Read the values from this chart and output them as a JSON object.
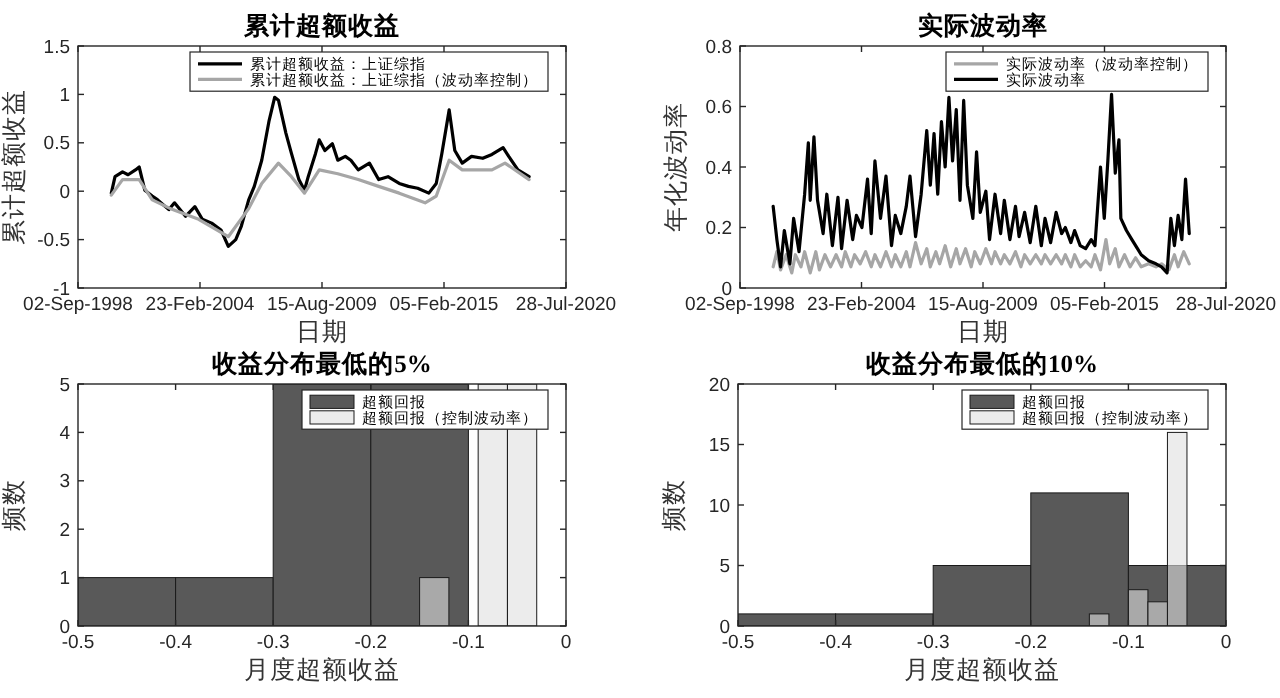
{
  "chart_data": [
    {
      "type": "line",
      "title": "累计超额收益",
      "xlabel": "日期",
      "ylabel": "累计超额收益",
      "legend": "top right",
      "xlim": [
        "1998-09-02",
        "2020-07-28"
      ],
      "xticks": [
        {
          "value": "1998-09-02",
          "label": "02-Sep-1998"
        },
        {
          "value": "2004-02-23",
          "label": "23-Feb-2004"
        },
        {
          "value": "2009-08-15",
          "label": "15-Aug-2009"
        },
        {
          "value": "2015-02-05",
          "label": "05-Feb-2015"
        },
        {
          "value": "2020-07-28",
          "label": "28-Jul-2020"
        }
      ],
      "ylim": [
        -1,
        1.5
      ],
      "yticks": [
        -1,
        -0.5,
        0,
        0.5,
        1,
        1.5
      ],
      "series": [
        {
          "name": "累计超额收益：上证综指",
          "color": "#000000",
          "x": [
            "2000-03",
            "2000-05",
            "2000-09",
            "2000-12",
            "2001-04",
            "2001-06",
            "2001-09",
            "2002-01",
            "2002-04",
            "2002-10",
            "2003-01",
            "2003-07",
            "2003-12",
            "2004-04",
            "2004-09",
            "2005-02",
            "2005-06",
            "2005-10",
            "2006-01",
            "2006-05",
            "2006-08",
            "2006-12",
            "2007-04",
            "2007-07",
            "2007-09",
            "2008-01",
            "2008-04",
            "2008-08",
            "2008-11",
            "2009-01",
            "2009-05",
            "2009-07",
            "2009-10",
            "2010-02",
            "2010-05",
            "2010-09",
            "2010-12",
            "2011-04",
            "2011-10",
            "2012-03",
            "2012-08",
            "2013-02",
            "2013-07",
            "2013-12",
            "2014-06",
            "2014-10",
            "2015-01",
            "2015-05",
            "2015-08",
            "2015-12",
            "2016-05",
            "2016-11",
            "2017-04",
            "2017-10",
            "2018-01",
            "2018-06",
            "2018-12"
          ],
          "values": [
            -0.02,
            0.15,
            0.2,
            0.17,
            0.22,
            0.25,
            0.01,
            -0.05,
            -0.09,
            -0.19,
            -0.12,
            -0.26,
            -0.16,
            -0.29,
            -0.33,
            -0.4,
            -0.57,
            -0.5,
            -0.36,
            -0.09,
            0.05,
            0.32,
            0.73,
            0.97,
            0.94,
            0.6,
            0.39,
            0.12,
            0.01,
            0.15,
            0.39,
            0.53,
            0.42,
            0.49,
            0.32,
            0.36,
            0.32,
            0.22,
            0.29,
            0.12,
            0.15,
            0.08,
            0.05,
            0.03,
            -0.02,
            0.08,
            0.39,
            0.84,
            0.42,
            0.29,
            0.36,
            0.34,
            0.38,
            0.45,
            0.36,
            0.22,
            0.15
          ]
        },
        {
          "name": "累计超额收益：上证综指（波动率控制）",
          "color": "#a6a6a6",
          "x": [
            "2000-03",
            "2000-09",
            "2001-06",
            "2002-01",
            "2002-12",
            "2004-02",
            "2005-06",
            "2006-05",
            "2006-12",
            "2007-09",
            "2008-04",
            "2008-11",
            "2009-07",
            "2010-05",
            "2011-04",
            "2012-03",
            "2013-02",
            "2014-04",
            "2014-10",
            "2015-05",
            "2015-12",
            "2017-04",
            "2017-11",
            "2018-12"
          ],
          "values": [
            -0.04,
            0.12,
            0.12,
            -0.09,
            -0.19,
            -0.29,
            -0.47,
            -0.18,
            0.08,
            0.29,
            0.15,
            -0.02,
            0.22,
            0.18,
            0.12,
            0.05,
            -0.02,
            -0.12,
            -0.05,
            0.32,
            0.22,
            0.22,
            0.29,
            0.12
          ]
        }
      ]
    },
    {
      "type": "line",
      "title": "实际波动率",
      "xlabel": "日期",
      "ylabel": "年化波动率",
      "legend": "top right",
      "xlim": [
        "1998-09-02",
        "2020-07-28"
      ],
      "xticks": [
        {
          "value": "1998-09-02",
          "label": "02-Sep-1998"
        },
        {
          "value": "2004-02-23",
          "label": "23-Feb-2004"
        },
        {
          "value": "2009-08-15",
          "label": "15-Aug-2009"
        },
        {
          "value": "2015-02-05",
          "label": "05-Feb-2015"
        },
        {
          "value": "2020-07-28",
          "label": "28-Jul-2020"
        }
      ],
      "ylim": [
        0,
        0.8
      ],
      "yticks": [
        0,
        0.2,
        0.4,
        0.6,
        0.8
      ],
      "series": [
        {
          "name": "实际波动率（波动率控制）",
          "color": "#a6a6a6",
          "x": [
            "2000-03",
            "2000-05",
            "2000-07",
            "2000-10",
            "2001-01",
            "2001-03",
            "2001-06",
            "2001-08",
            "2001-11",
            "2002-02",
            "2002-04",
            "2002-07",
            "2002-10",
            "2003-01",
            "2003-04",
            "2003-06",
            "2003-09",
            "2003-11",
            "2004-02",
            "2004-05",
            "2004-08",
            "2004-10",
            "2005-01",
            "2005-04",
            "2005-07",
            "2005-09",
            "2005-12",
            "2006-03",
            "2006-05",
            "2006-08",
            "2006-11",
            "2007-02",
            "2007-04",
            "2007-07",
            "2007-09",
            "2007-12",
            "2008-03",
            "2008-06",
            "2008-08",
            "2008-11",
            "2009-02",
            "2009-04",
            "2009-07",
            "2009-10",
            "2010-01",
            "2010-03",
            "2010-06",
            "2010-08",
            "2010-11",
            "2011-02",
            "2011-05",
            "2011-07",
            "2011-10",
            "2012-01",
            "2012-04",
            "2012-06",
            "2012-09",
            "2012-12",
            "2013-03",
            "2013-05",
            "2013-08",
            "2013-10",
            "2014-01",
            "2014-04",
            "2014-07",
            "2014-09",
            "2014-12",
            "2015-03",
            "2015-05",
            "2015-08",
            "2015-10",
            "2016-01",
            "2016-04",
            "2016-07",
            "2016-10",
            "2017-02",
            "2017-06",
            "2017-09",
            "2018-01",
            "2018-04",
            "2018-06",
            "2018-09",
            "2018-12"
          ],
          "values": [
            0.07,
            0.12,
            0.06,
            0.11,
            0.05,
            0.11,
            0.07,
            0.12,
            0.05,
            0.12,
            0.06,
            0.11,
            0.07,
            0.11,
            0.07,
            0.12,
            0.07,
            0.11,
            0.08,
            0.12,
            0.07,
            0.11,
            0.07,
            0.12,
            0.07,
            0.11,
            0.07,
            0.12,
            0.07,
            0.15,
            0.08,
            0.13,
            0.07,
            0.12,
            0.08,
            0.14,
            0.07,
            0.13,
            0.08,
            0.13,
            0.07,
            0.12,
            0.08,
            0.13,
            0.08,
            0.12,
            0.08,
            0.11,
            0.08,
            0.12,
            0.07,
            0.11,
            0.08,
            0.11,
            0.08,
            0.11,
            0.08,
            0.11,
            0.08,
            0.11,
            0.07,
            0.11,
            0.07,
            0.09,
            0.07,
            0.11,
            0.06,
            0.16,
            0.08,
            0.13,
            0.07,
            0.11,
            0.07,
            0.1,
            0.07,
            0.08,
            0.07,
            0.08,
            0.06,
            0.11,
            0.07,
            0.12,
            0.08
          ]
        },
        {
          "name": "实际波动率",
          "color": "#000000",
          "x": [
            "2000-03",
            "2000-05",
            "2000-07",
            "2000-09",
            "2000-12",
            "2001-02",
            "2001-05",
            "2001-08",
            "2001-10",
            "2001-11",
            "2002-01",
            "2002-03",
            "2002-06",
            "2002-08",
            "2002-11",
            "2003-02",
            "2003-04",
            "2003-07",
            "2003-10",
            "2003-12",
            "2004-03",
            "2004-06",
            "2004-08",
            "2004-10",
            "2005-01",
            "2005-04",
            "2005-07",
            "2005-09",
            "2005-12",
            "2006-03",
            "2006-05",
            "2006-08",
            "2006-11",
            "2007-02",
            "2007-04",
            "2007-06",
            "2007-08",
            "2007-10",
            "2007-12",
            "2008-02",
            "2008-04",
            "2008-06",
            "2008-08",
            "2008-10",
            "2008-12",
            "2009-03",
            "2009-05",
            "2009-07",
            "2009-10",
            "2009-12",
            "2010-03",
            "2010-06",
            "2010-08",
            "2010-11",
            "2011-02",
            "2011-04",
            "2011-07",
            "2011-10",
            "2012-01",
            "2012-04",
            "2012-06",
            "2012-09",
            "2012-12",
            "2013-03",
            "2013-05",
            "2013-08",
            "2013-10",
            "2014-01",
            "2014-04",
            "2014-07",
            "2014-09",
            "2014-12",
            "2015-02",
            "2015-04",
            "2015-06",
            "2015-08",
            "2015-10",
            "2015-11",
            "2016-02",
            "2016-05",
            "2016-08",
            "2016-10",
            "2017-02",
            "2017-06",
            "2017-09",
            "2017-12",
            "2018-02",
            "2018-04",
            "2018-06",
            "2018-08",
            "2018-10",
            "2018-12"
          ],
          "values": [
            0.27,
            0.16,
            0.07,
            0.19,
            0.08,
            0.23,
            0.12,
            0.31,
            0.48,
            0.29,
            0.5,
            0.29,
            0.18,
            0.31,
            0.14,
            0.3,
            0.13,
            0.29,
            0.16,
            0.24,
            0.2,
            0.36,
            0.18,
            0.42,
            0.23,
            0.37,
            0.14,
            0.24,
            0.18,
            0.27,
            0.37,
            0.17,
            0.31,
            0.52,
            0.34,
            0.51,
            0.31,
            0.55,
            0.4,
            0.63,
            0.42,
            0.59,
            0.29,
            0.62,
            0.34,
            0.23,
            0.45,
            0.25,
            0.32,
            0.16,
            0.31,
            0.18,
            0.29,
            0.16,
            0.27,
            0.17,
            0.25,
            0.15,
            0.27,
            0.14,
            0.23,
            0.15,
            0.25,
            0.18,
            0.2,
            0.15,
            0.19,
            0.14,
            0.13,
            0.16,
            0.14,
            0.4,
            0.23,
            0.42,
            0.64,
            0.38,
            0.49,
            0.23,
            0.19,
            0.16,
            0.13,
            0.11,
            0.09,
            0.08,
            0.07,
            0.05,
            0.23,
            0.14,
            0.24,
            0.16,
            0.36,
            0.18
          ]
        }
      ]
    },
    {
      "type": "histogram",
      "title": "收益分布最低的5%",
      "xlabel": "月度超额收益",
      "ylabel": "频数",
      "legend": "top right",
      "xlim": [
        -0.5,
        0
      ],
      "xticks": [
        -0.5,
        -0.4,
        -0.3,
        -0.2,
        -0.1,
        0
      ],
      "ylim": [
        0,
        5
      ],
      "yticks": [
        0,
        1,
        2,
        3,
        4,
        5
      ],
      "bins": [
        -0.5,
        -0.4,
        -0.3,
        -0.2,
        -0.1
      ],
      "series": [
        {
          "name": "超额回报",
          "color": "#595959",
          "values": [
            1,
            1,
            5,
            5
          ]
        },
        {
          "name": "超额回报（控制波动率）",
          "color": "#e0e0e0",
          "bins": [
            -0.15,
            -0.12,
            -0.09,
            -0.06,
            -0.03
          ],
          "values": [
            1,
            0,
            5,
            5
          ]
        }
      ]
    },
    {
      "type": "histogram",
      "title": "收益分布最低的10%",
      "xlabel": "月度超额收益",
      "ylabel": "频数",
      "legend": "top right",
      "xlim": [
        -0.5,
        0
      ],
      "xticks": [
        -0.5,
        -0.4,
        -0.3,
        -0.2,
        -0.1,
        0
      ],
      "ylim": [
        0,
        20
      ],
      "yticks": [
        0,
        5,
        10,
        15,
        20
      ],
      "bins": [
        -0.5,
        -0.4,
        -0.3,
        -0.2,
        -0.1,
        0
      ],
      "series": [
        {
          "name": "超额回报",
          "color": "#595959",
          "values": [
            1,
            1,
            5,
            11,
            5
          ]
        },
        {
          "name": "超额回报（控制波动率）",
          "color": "#e0e0e0",
          "bins": [
            -0.14,
            -0.12,
            -0.1,
            -0.08,
            -0.06,
            -0.04
          ],
          "values": [
            1,
            0,
            3,
            2,
            16
          ]
        }
      ]
    }
  ]
}
